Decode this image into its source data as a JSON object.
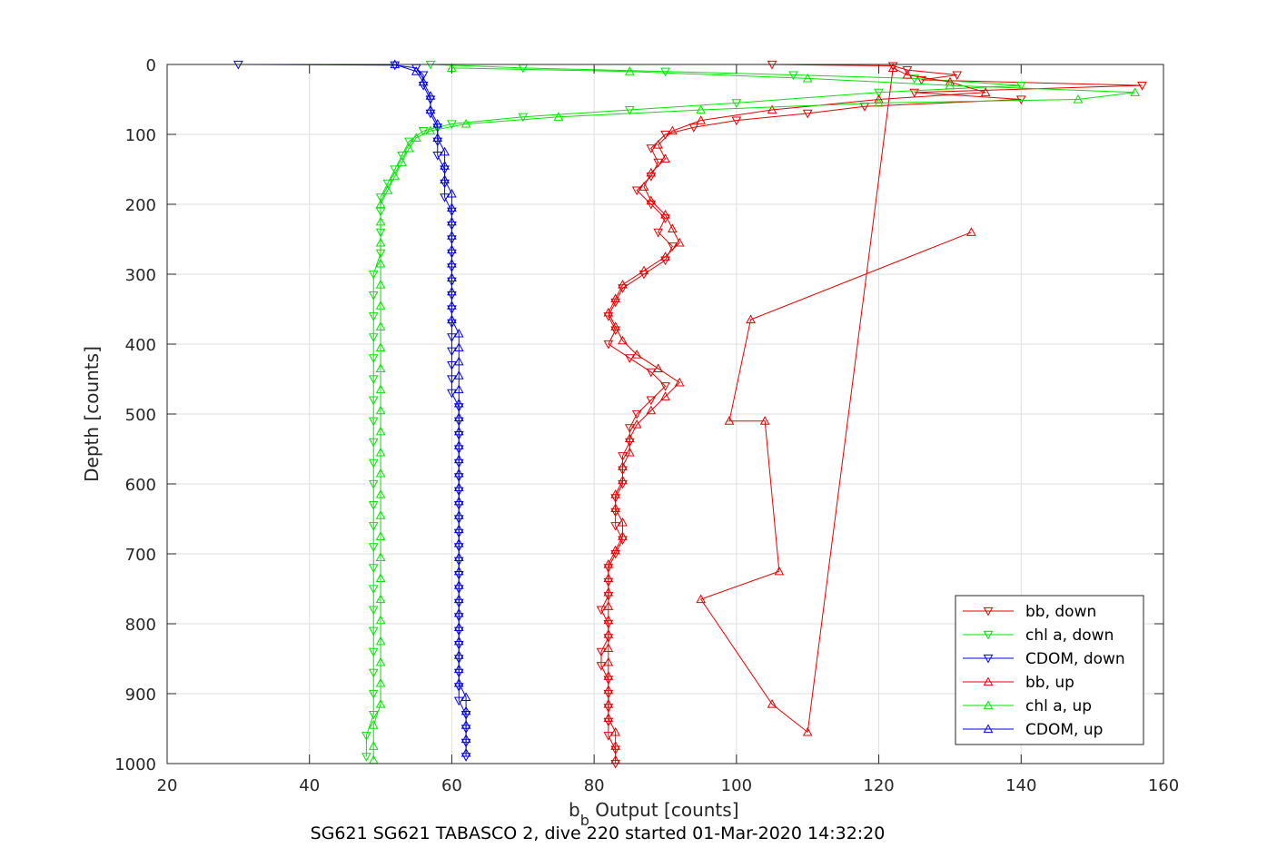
{
  "chart_data": {
    "type": "scatter",
    "xlabel_main": "b",
    "xlabel_sub": "b",
    "xlabel_rest": " Output [counts]",
    "ylabel": "Depth [counts]",
    "caption": "SG621 SG621 TABASCO 2, dive 220 started 01-Mar-2020 14:32:20",
    "xlim": [
      20,
      160
    ],
    "ylim": [
      0,
      1000
    ],
    "y_reversed": true,
    "grid": true,
    "legend_position": "bottom-right",
    "x_ticks": [
      "20",
      "40",
      "60",
      "80",
      "100",
      "120",
      "140",
      "160"
    ],
    "y_ticks": [
      "0",
      "100",
      "200",
      "300",
      "400",
      "500",
      "600",
      "700",
      "800",
      "900",
      "1000"
    ],
    "colors": {
      "bb": "#e60000",
      "chl": "#00e600",
      "cdom": "#0000e6"
    },
    "series": [
      {
        "name": "bb, down",
        "color": "#e60000",
        "marker": "triangle-down",
        "points": [
          [
            105,
            0
          ],
          [
            122,
            2
          ],
          [
            124,
            8
          ],
          [
            131,
            15
          ],
          [
            126,
            22
          ],
          [
            157,
            30
          ],
          [
            125,
            40
          ],
          [
            140,
            50
          ],
          [
            118,
            60
          ],
          [
            110,
            70
          ],
          [
            100,
            80
          ],
          [
            94,
            90
          ],
          [
            90,
            100
          ],
          [
            88,
            120
          ],
          [
            89,
            140
          ],
          [
            88,
            160
          ],
          [
            86,
            180
          ],
          [
            88,
            200
          ],
          [
            90,
            220
          ],
          [
            89,
            240
          ],
          [
            91,
            260
          ],
          [
            90,
            280
          ],
          [
            87,
            300
          ],
          [
            84,
            320
          ],
          [
            83,
            340
          ],
          [
            82,
            360
          ],
          [
            83,
            380
          ],
          [
            82,
            400
          ],
          [
            85,
            420
          ],
          [
            88,
            440
          ],
          [
            90,
            460
          ],
          [
            88,
            480
          ],
          [
            86,
            500
          ],
          [
            85,
            520
          ],
          [
            85,
            540
          ],
          [
            84,
            560
          ],
          [
            84,
            580
          ],
          [
            84,
            600
          ],
          [
            83,
            620
          ],
          [
            83,
            640
          ],
          [
            83,
            660
          ],
          [
            84,
            680
          ],
          [
            83,
            700
          ],
          [
            82,
            720
          ],
          [
            82,
            740
          ],
          [
            82,
            760
          ],
          [
            81,
            780
          ],
          [
            82,
            800
          ],
          [
            82,
            820
          ],
          [
            81,
            840
          ],
          [
            81,
            860
          ],
          [
            82,
            880
          ],
          [
            82,
            900
          ],
          [
            82,
            920
          ],
          [
            82,
            940
          ],
          [
            82,
            960
          ],
          [
            83,
            980
          ],
          [
            83,
            1000
          ]
        ]
      },
      {
        "name": "chl a, down",
        "color": "#00e600",
        "marker": "triangle-down",
        "points": [
          [
            57,
            0
          ],
          [
            70,
            5
          ],
          [
            90,
            10
          ],
          [
            108,
            15
          ],
          [
            125,
            20
          ],
          [
            140,
            30
          ],
          [
            120,
            40
          ],
          [
            100,
            55
          ],
          [
            85,
            65
          ],
          [
            70,
            75
          ],
          [
            60,
            85
          ],
          [
            56,
            95
          ],
          [
            54,
            110
          ],
          [
            53,
            130
          ],
          [
            52,
            150
          ],
          [
            51,
            170
          ],
          [
            50,
            190
          ],
          [
            50,
            210
          ],
          [
            50,
            240
          ],
          [
            50,
            270
          ],
          [
            49,
            300
          ],
          [
            49,
            330
          ],
          [
            49,
            360
          ],
          [
            49,
            390
          ],
          [
            49,
            420
          ],
          [
            49,
            450
          ],
          [
            49,
            480
          ],
          [
            49,
            510
          ],
          [
            49,
            540
          ],
          [
            49,
            570
          ],
          [
            49,
            600
          ],
          [
            49,
            630
          ],
          [
            49,
            660
          ],
          [
            49,
            690
          ],
          [
            49,
            720
          ],
          [
            49,
            750
          ],
          [
            49,
            780
          ],
          [
            49,
            810
          ],
          [
            49,
            840
          ],
          [
            49,
            870
          ],
          [
            49,
            900
          ],
          [
            49,
            930
          ],
          [
            48,
            960
          ],
          [
            48,
            990
          ]
        ]
      },
      {
        "name": "CDOM, down",
        "color": "#0000e6",
        "marker": "triangle-down",
        "points": [
          [
            30,
            0
          ],
          [
            52,
            1
          ],
          [
            55,
            5
          ],
          [
            56,
            15
          ],
          [
            56,
            30
          ],
          [
            57,
            50
          ],
          [
            57,
            70
          ],
          [
            58,
            90
          ],
          [
            58,
            110
          ],
          [
            58,
            130
          ],
          [
            59,
            150
          ],
          [
            59,
            170
          ],
          [
            59,
            190
          ],
          [
            60,
            210
          ],
          [
            60,
            230
          ],
          [
            60,
            250
          ],
          [
            60,
            270
          ],
          [
            60,
            290
          ],
          [
            60,
            310
          ],
          [
            60,
            330
          ],
          [
            60,
            350
          ],
          [
            60,
            370
          ],
          [
            60,
            390
          ],
          [
            60,
            410
          ],
          [
            60,
            430
          ],
          [
            60,
            450
          ],
          [
            60,
            470
          ],
          [
            61,
            490
          ],
          [
            61,
            510
          ],
          [
            61,
            530
          ],
          [
            61,
            550
          ],
          [
            61,
            570
          ],
          [
            61,
            590
          ],
          [
            61,
            610
          ],
          [
            61,
            630
          ],
          [
            61,
            650
          ],
          [
            61,
            670
          ],
          [
            61,
            690
          ],
          [
            61,
            710
          ],
          [
            61,
            730
          ],
          [
            61,
            750
          ],
          [
            61,
            770
          ],
          [
            61,
            790
          ],
          [
            61,
            810
          ],
          [
            61,
            830
          ],
          [
            61,
            850
          ],
          [
            61,
            870
          ],
          [
            61,
            890
          ],
          [
            61,
            910
          ],
          [
            62,
            930
          ],
          [
            62,
            950
          ],
          [
            62,
            970
          ],
          [
            62,
            990
          ]
        ]
      },
      {
        "name": "bb, up",
        "color": "#e60000",
        "marker": "triangle-up",
        "points": [
          [
            133,
            240
          ],
          [
            102,
            365
          ],
          [
            99,
            510
          ],
          [
            104,
            510
          ],
          [
            106,
            725
          ],
          [
            95,
            765
          ],
          [
            105,
            915
          ],
          [
            110,
            955
          ],
          [
            122,
            5
          ],
          [
            124,
            15
          ],
          [
            130,
            25
          ],
          [
            135,
            40
          ],
          [
            120,
            50
          ],
          [
            105,
            65
          ],
          [
            95,
            80
          ],
          [
            91,
            95
          ],
          [
            89,
            115
          ],
          [
            90,
            135
          ],
          [
            88,
            155
          ],
          [
            87,
            175
          ],
          [
            88,
            195
          ],
          [
            90,
            215
          ],
          [
            91,
            235
          ],
          [
            92,
            255
          ],
          [
            90,
            275
          ],
          [
            87,
            295
          ],
          [
            84,
            315
          ],
          [
            83,
            335
          ],
          [
            82,
            355
          ],
          [
            83,
            375
          ],
          [
            84,
            395
          ],
          [
            86,
            415
          ],
          [
            89,
            435
          ],
          [
            92,
            455
          ],
          [
            90,
            475
          ],
          [
            88,
            495
          ],
          [
            86,
            515
          ],
          [
            85,
            535
          ],
          [
            85,
            555
          ],
          [
            84,
            575
          ],
          [
            84,
            595
          ],
          [
            83,
            615
          ],
          [
            83,
            635
          ],
          [
            84,
            655
          ],
          [
            84,
            675
          ],
          [
            83,
            695
          ],
          [
            82,
            715
          ],
          [
            82,
            735
          ],
          [
            82,
            755
          ],
          [
            82,
            775
          ],
          [
            82,
            795
          ],
          [
            82,
            815
          ],
          [
            82,
            835
          ],
          [
            82,
            855
          ],
          [
            82,
            875
          ],
          [
            82,
            895
          ],
          [
            82,
            915
          ],
          [
            82,
            935
          ],
          [
            83,
            955
          ],
          [
            83,
            975
          ],
          [
            83,
            995
          ]
        ]
      },
      {
        "name": "chl a, up",
        "color": "#00e600",
        "marker": "triangle-up",
        "points": [
          [
            60,
            5
          ],
          [
            85,
            10
          ],
          [
            110,
            20
          ],
          [
            130,
            30
          ],
          [
            156,
            40
          ],
          [
            148,
            50
          ],
          [
            120,
            55
          ],
          [
            95,
            65
          ],
          [
            75,
            75
          ],
          [
            62,
            85
          ],
          [
            57,
            95
          ],
          [
            55,
            105
          ],
          [
            54,
            120
          ],
          [
            53,
            140
          ],
          [
            52,
            160
          ],
          [
            51,
            180
          ],
          [
            50,
            200
          ],
          [
            50,
            225
          ],
          [
            50,
            255
          ],
          [
            50,
            285
          ],
          [
            50,
            315
          ],
          [
            50,
            345
          ],
          [
            50,
            375
          ],
          [
            50,
            405
          ],
          [
            50,
            435
          ],
          [
            50,
            465
          ],
          [
            50,
            495
          ],
          [
            50,
            525
          ],
          [
            50,
            555
          ],
          [
            50,
            585
          ],
          [
            50,
            615
          ],
          [
            50,
            645
          ],
          [
            50,
            675
          ],
          [
            50,
            705
          ],
          [
            50,
            735
          ],
          [
            50,
            765
          ],
          [
            50,
            795
          ],
          [
            50,
            825
          ],
          [
            50,
            855
          ],
          [
            50,
            885
          ],
          [
            50,
            915
          ],
          [
            49,
            945
          ],
          [
            49,
            975
          ],
          [
            49,
            995
          ]
        ]
      },
      {
        "name": "CDOM, up",
        "color": "#0000e6",
        "marker": "triangle-up",
        "points": [
          [
            52,
            0
          ],
          [
            55,
            10
          ],
          [
            56,
            25
          ],
          [
            57,
            45
          ],
          [
            57,
            65
          ],
          [
            58,
            85
          ],
          [
            58,
            105
          ],
          [
            59,
            125
          ],
          [
            59,
            145
          ],
          [
            59,
            165
          ],
          [
            60,
            185
          ],
          [
            60,
            205
          ],
          [
            60,
            225
          ],
          [
            60,
            245
          ],
          [
            60,
            265
          ],
          [
            60,
            285
          ],
          [
            60,
            305
          ],
          [
            60,
            325
          ],
          [
            60,
            345
          ],
          [
            60,
            365
          ],
          [
            61,
            385
          ],
          [
            61,
            405
          ],
          [
            61,
            425
          ],
          [
            61,
            445
          ],
          [
            61,
            465
          ],
          [
            61,
            485
          ],
          [
            61,
            505
          ],
          [
            61,
            525
          ],
          [
            61,
            545
          ],
          [
            61,
            565
          ],
          [
            61,
            585
          ],
          [
            61,
            605
          ],
          [
            61,
            625
          ],
          [
            61,
            645
          ],
          [
            61,
            665
          ],
          [
            61,
            685
          ],
          [
            61,
            705
          ],
          [
            61,
            725
          ],
          [
            61,
            745
          ],
          [
            61,
            765
          ],
          [
            61,
            785
          ],
          [
            61,
            805
          ],
          [
            61,
            825
          ],
          [
            61,
            845
          ],
          [
            61,
            865
          ],
          [
            61,
            885
          ],
          [
            62,
            905
          ],
          [
            62,
            925
          ],
          [
            62,
            945
          ],
          [
            62,
            965
          ],
          [
            62,
            985
          ]
        ]
      }
    ]
  }
}
